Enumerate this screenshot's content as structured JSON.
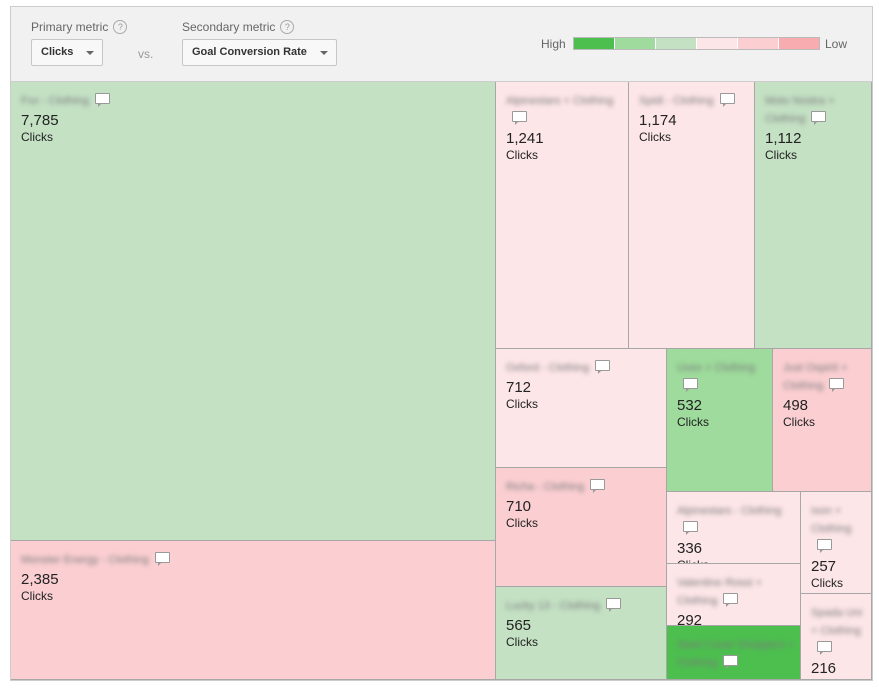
{
  "controls": {
    "primary_label": "Primary metric",
    "primary_value": "Clicks",
    "vs_label": "vs.",
    "secondary_label": "Secondary metric",
    "secondary_value": "Goal Conversion Rate",
    "help_glyph": "?"
  },
  "legend": {
    "high_label": "High",
    "low_label": "Low",
    "colors": [
      "#4cbf4f",
      "#9edb9c",
      "#c4e1c4",
      "#fde6e8",
      "#fbcfd2",
      "#f8acb0"
    ]
  },
  "chart_data": {
    "type": "treemap",
    "size_metric": "Clicks",
    "color_metric": "Goal Conversion Rate",
    "items": [
      {
        "label": "Fxx - Clothing",
        "value": 7785,
        "display_value": "7,785",
        "unit": "Clicks",
        "color": "#c4e1c4"
      },
      {
        "label": "Monster Energy - Clothing",
        "value": 2385,
        "display_value": "2,385",
        "unit": "Clicks",
        "color": "#fbcfd2"
      },
      {
        "label": "Alpinestars + Clothing",
        "value": 1241,
        "display_value": "1,241",
        "unit": "Clicks",
        "color": "#fde6e8"
      },
      {
        "label": "Spidi - Clothing",
        "value": 1174,
        "display_value": "1,174",
        "unit": "Clicks",
        "color": "#fde6e8"
      },
      {
        "label": "Moto Nostra + Clothing",
        "value": 1112,
        "display_value": "1,112",
        "unit": "Clicks",
        "color": "#c4e1c4"
      },
      {
        "label": "Oxford - Clothing",
        "value": 712,
        "display_value": "712",
        "unit": "Clicks",
        "color": "#fde6e8"
      },
      {
        "label": "Uvex + Clothing",
        "value": 532,
        "display_value": "532",
        "unit": "Clicks",
        "color": "#9edb9c"
      },
      {
        "label": "Just Ospirit + Clothing",
        "value": 498,
        "display_value": "498",
        "unit": "Clicks",
        "color": "#fbcfd2"
      },
      {
        "label": "Richa - Clothing",
        "value": 710,
        "display_value": "710",
        "unit": "Clicks",
        "color": "#fbcfd2"
      },
      {
        "label": "Lucky 13 - Clothing",
        "value": 565,
        "display_value": "565",
        "unit": "Clicks",
        "color": "#c4e1c4"
      },
      {
        "label": "Alpinestars - Clothing",
        "value": 336,
        "display_value": "336",
        "unit": "Clicks",
        "color": "#fde6e8"
      },
      {
        "label": "Ixon + Clothing",
        "value": 257,
        "display_value": "257",
        "unit": "Clicks",
        "color": "#fde6e8"
      },
      {
        "label": "Valentino Rossi + Clothing",
        "value": 292,
        "display_value": "292",
        "unit": "Clicks",
        "color": "#fde6e8"
      },
      {
        "label": "Spada Uni + Clothing",
        "value": 216,
        "display_value": "216",
        "unit": "Clicks",
        "color": "#fde6e8"
      },
      {
        "label": "Steel Cover Shoppers + Clothing",
        "value": null,
        "display_value": "",
        "unit": "",
        "color": "#4cbf4f"
      }
    ]
  }
}
